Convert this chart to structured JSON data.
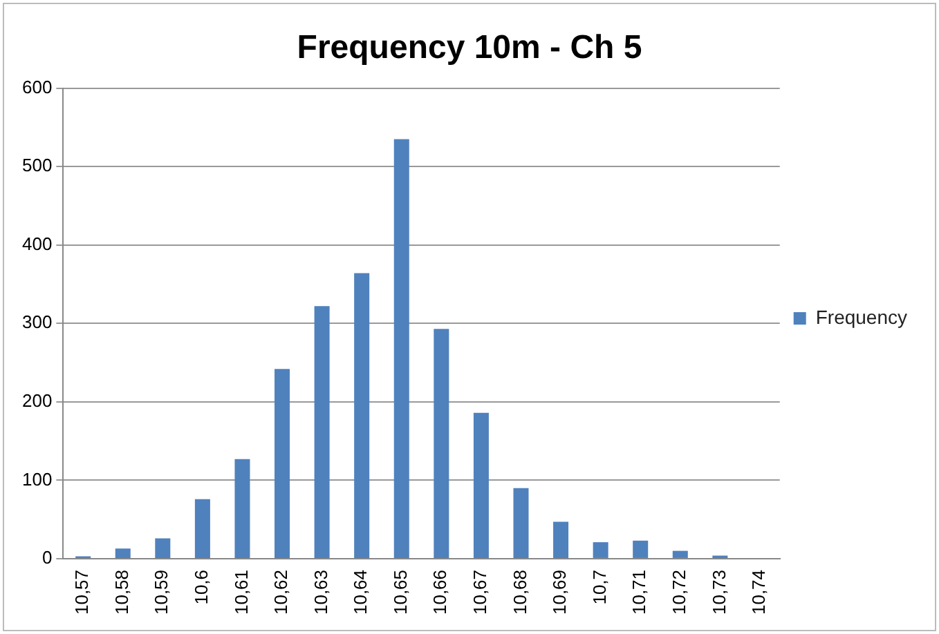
{
  "chart_data": {
    "type": "bar",
    "title": "Frequency 10m - Ch 5",
    "categories": [
      "10,57",
      "10,58",
      "10,59",
      "10,6",
      "10,61",
      "10,62",
      "10,63",
      "10,64",
      "10,65",
      "10,66",
      "10,67",
      "10,68",
      "10,69",
      "10,7",
      "10,71",
      "10,72",
      "10,73",
      "10,74"
    ],
    "series": [
      {
        "name": "Frequency",
        "color": "#4f81bd",
        "values": [
          3,
          13,
          26,
          76,
          127,
          242,
          322,
          364,
          535,
          293,
          186,
          90,
          47,
          21,
          23,
          10,
          4,
          0
        ]
      }
    ],
    "ylim": [
      0,
      600
    ],
    "yticks": [
      0,
      100,
      200,
      300,
      400,
      500,
      600
    ],
    "grid": "y",
    "legend": "right"
  }
}
